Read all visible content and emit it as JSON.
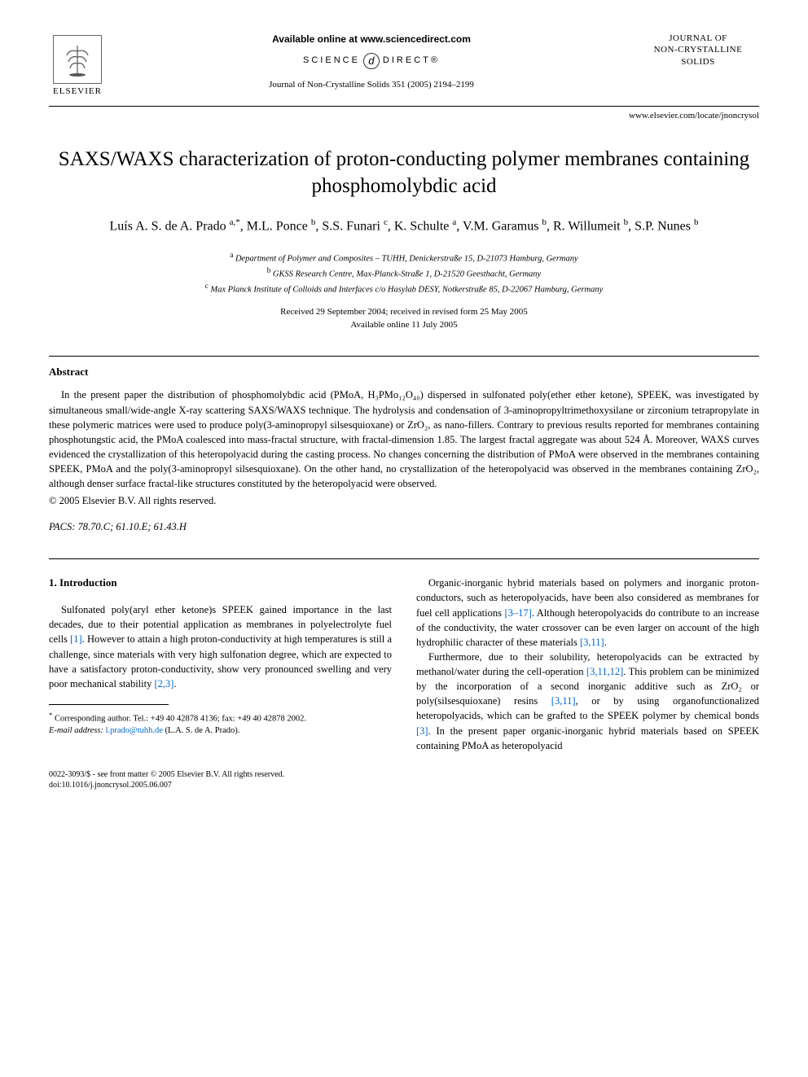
{
  "header": {
    "available_online": "Available online at www.sciencedirect.com",
    "sciencedirect_left": "SCIENCE",
    "sciencedirect_d": "d",
    "sciencedirect_right": "DIRECT®",
    "journal_ref": "Journal of Non-Crystalline Solids 351 (2005) 2194–2199",
    "elsevier_label": "ELSEVIER",
    "journal_logo_line1": "JOURNAL OF",
    "journal_logo_line2": "NON-CRYSTALLINE SOLIDS",
    "locate_url": "www.elsevier.com/locate/jnoncrysol"
  },
  "title": "SAXS/WAXS characterization of proton-conducting polymer membranes containing phosphomolybdic acid",
  "authors_html": "Luís A. S. de A. Prado <sup>a,*</sup>, M.L. Ponce <sup>b</sup>, S.S. Funari <sup>c</sup>, K. Schulte <sup>a</sup>, V.M. Garamus <sup>b</sup>, R. Willumeit <sup>b</sup>, S.P. Nunes <sup>b</sup>",
  "affiliations": {
    "a": "Department of Polymer and Composites – TUHH, Denickerstraße 15, D-21073 Hamburg, Germany",
    "b": "GKSS Research Centre, Max-Planck-Straße 1, D-21520 Geesthacht, Germany",
    "c": "Max Planck Institute of Colloids and Interfaces c/o Hasylab DESY, Notkerstraße 85, D-22067 Hamburg, Germany"
  },
  "dates": {
    "received": "Received 29 September 2004; received in revised form 25 May 2005",
    "available": "Available online 11 July 2005"
  },
  "abstract": {
    "heading": "Abstract",
    "text": "In the present paper the distribution of phosphomolybdic acid (PMoA, H₃PMo₁₂O₄₀) dispersed in sulfonated poly(ether ether ketone), SPEEK, was investigated by simultaneous small/wide-angle X-ray scattering SAXS/WAXS technique. The hydrolysis and condensation of 3-aminopropyltrimethoxysilane or zirconium tetrapropylate in these polymeric matrices were used to produce poly(3-aminopropyl silsesquioxane) or ZrO₂, as nano-fillers. Contrary to previous results reported for membranes containing phosphotungstic acid, the PMoA coalesced into mass-fractal structure, with fractal-dimension 1.85. The largest fractal aggregate was about 524 Å. Moreover, WAXS curves evidenced the crystallization of this heteropolyacid during the casting process. No changes concerning the distribution of PMoA were observed in the membranes containing SPEEK, PMoA and the poly(3-aminopropyl silsesquioxane). On the other hand, no crystallization of the heteropolyacid was observed in the membranes containing ZrO₂, although denser surface fractal-like structures constituted by the heteropolyacid were observed.",
    "copyright": "© 2005 Elsevier B.V. All rights reserved."
  },
  "pacs": {
    "label": "PACS:",
    "codes": "78.70.C; 61.10.E; 61.43.H"
  },
  "section1": {
    "heading": "1. Introduction",
    "left_para1_pre": "Sulfonated poly(aryl ether ketone)s SPEEK gained importance in the last decades, due to their potential application as membranes in polyelectrolyte fuel cells ",
    "ref1": "[1]",
    "left_para1_mid": ". However to attain a high proton-conductivity at high temperatures is still a challenge, since materials with very high sulfonation degree, which are expected to have a satisfactory proton-conductivity, show very pronounced swelling and very poor mechanical stability ",
    "ref23": "[2,3]",
    "left_para1_end": ".",
    "right_para1_pre": "Organic-inorganic hybrid materials based on polymers and inorganic proton-conductors, such as heteropolyacids, have been also considered as membranes for fuel cell applications ",
    "ref317": "[3–17]",
    "right_para1_mid": ". Although heteropolyacids do contribute to an increase of the conductivity, the water crossover can be even larger on account of the high hydrophilic character of these materials ",
    "ref311": "[3,11]",
    "right_para1_end": ".",
    "right_para2_pre": "Furthermore, due to their solubility, heteropolyacids can be extracted by methanol/water during the cell-operation ",
    "ref31112": "[3,11,12]",
    "right_para2_mid1": ". This problem can be minimized by the incorporation of a second inorganic additive such as ZrO₂ or poly(silsesquioxane) resins ",
    "ref311b": "[3,11]",
    "right_para2_mid2": ", or by using organofunctionalized heteropolyacids, which can be grafted to the SPEEK polymer by chemical bonds ",
    "ref3": "[3]",
    "right_para2_end": ". In the present paper organic-inorganic hybrid materials based on SPEEK containing PMoA as heteropolyacid"
  },
  "footnotes": {
    "corresponding": "Corresponding author. Tel.: +49 40 42878 4136; fax: +49 40 42878 2002.",
    "email_label": "E-mail address:",
    "email": "l.prado@tuhh.de",
    "email_person": "(L.A. S. de A. Prado)."
  },
  "bottom": {
    "line1": "0022-3093/$ - see front matter © 2005 Elsevier B.V. All rights reserved.",
    "line2": "doi:10.1016/j.jnoncrysol.2005.06.007"
  },
  "colors": {
    "link": "#0066cc",
    "text": "#000000",
    "bg": "#ffffff"
  }
}
